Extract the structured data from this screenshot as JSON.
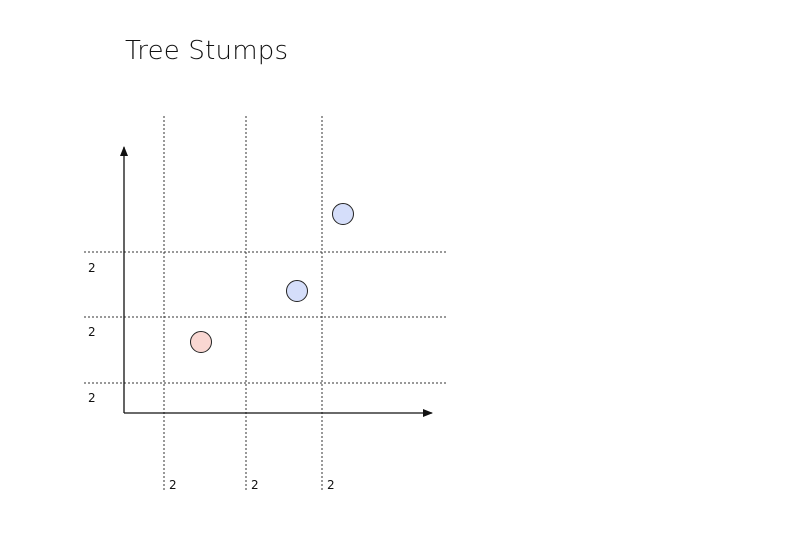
{
  "title": "Tree Stumps",
  "vertical_split_labels": [
    "2",
    "2",
    "2"
  ],
  "horizontal_split_labels": [
    "2",
    "2",
    "2"
  ],
  "points": [
    {
      "class": "positive",
      "col": 1,
      "row": 1
    },
    {
      "class": "negative",
      "col": 2,
      "row": 2
    },
    {
      "class": "negative",
      "col": 3,
      "row": 3
    }
  ],
  "colors": {
    "positive_fill": "#f9d7d2",
    "negative_fill": "#d5defa",
    "stroke": "#222222",
    "grid": "#333333"
  }
}
